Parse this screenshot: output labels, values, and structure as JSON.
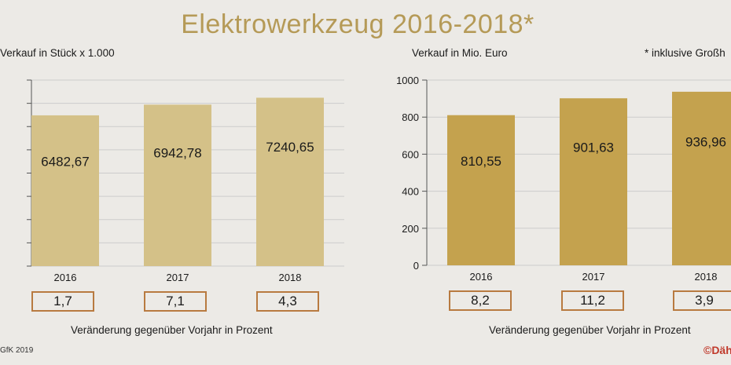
{
  "title": "Elektrowerkzeug 2016-2018*",
  "footnote": "* inklusive Großh",
  "source": "GfK 2019",
  "brand": "©Däh",
  "colors": {
    "title": "#b59a57",
    "bar_left": "#d4c188",
    "bar_right": "#c4a24e",
    "box_border": "#b87a40",
    "grid": "#cccccc"
  },
  "chart_data": [
    {
      "type": "bar",
      "ylabel": "Verkauf in Stück x 1.000",
      "categories": [
        "2016",
        "2017",
        "2018"
      ],
      "values": [
        6482.67,
        6942.78,
        7240.65
      ],
      "value_labels": [
        "6482,67",
        "6942,78",
        "7240,65"
      ],
      "ylim": [
        0,
        8000
      ],
      "grid": true,
      "changes_label": "Veränderung gegenüber Vorjahr in Prozent",
      "changes": [
        "1,7",
        "7,1",
        "4,3"
      ]
    },
    {
      "type": "bar",
      "ylabel": "Verkauf in Mio. Euro",
      "categories": [
        "2016",
        "2017",
        "2018"
      ],
      "values": [
        810.55,
        901.63,
        936.96
      ],
      "value_labels": [
        "810,55",
        "901,63",
        "936,96"
      ],
      "ylim": [
        0,
        1000
      ],
      "yticks": [
        "0",
        "200",
        "400",
        "600",
        "800",
        "1000"
      ],
      "grid": true,
      "changes_label": "Veränderung gegenüber Vorjahr in Prozent",
      "changes": [
        "8,2",
        "11,2",
        "3,9"
      ]
    }
  ]
}
